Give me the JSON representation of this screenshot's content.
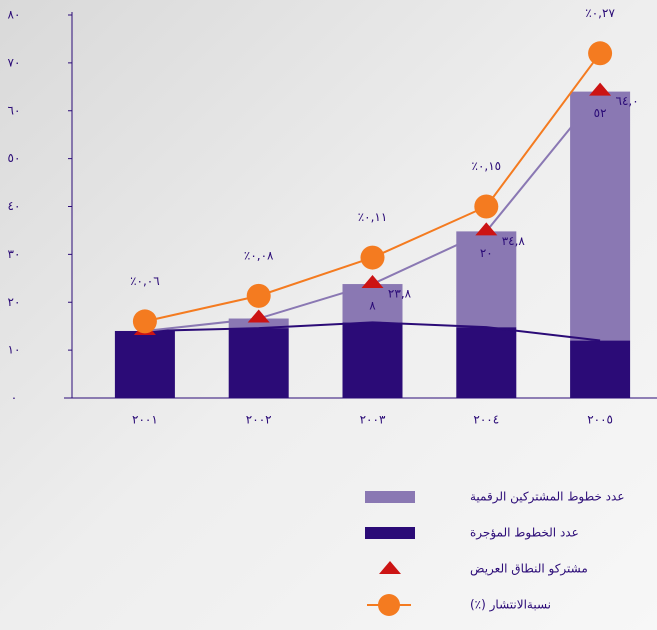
{
  "chart_data": {
    "type": "bar",
    "categories": [
      "٢٠٠١",
      "٢٠٠٢",
      "٢٠٠٣",
      "٢٠٠٤",
      "٢٠٠٥"
    ],
    "series": [
      {
        "name": "عدد الخطوط المؤجرة",
        "type": "bar",
        "color": "#2b0b77",
        "values": [
          14,
          14.6,
          15.8,
          14.8,
          12
        ]
      },
      {
        "name": "عدد خطوط المشتركين الرقمية",
        "type": "bar",
        "color": "#8a78b3",
        "values": [
          0,
          2,
          8,
          20,
          52
        ],
        "value_labels": [
          null,
          null,
          "٨",
          "٢٠",
          "٥٢"
        ]
      },
      {
        "name": "مشتركو النطاق العريض",
        "type": "marker",
        "color": "#cc1414",
        "values": [
          14,
          16.6,
          23.8,
          34.8,
          64
        ],
        "value_labels": [
          null,
          null,
          "٢٣,٨",
          "٣٤,٨",
          "٦٤,٠"
        ]
      },
      {
        "name": "نسبةالانتشار (٪)",
        "type": "line",
        "axis": "y2",
        "color": "#f47b20",
        "values": [
          0.06,
          0.08,
          0.11,
          0.15,
          0.27
        ],
        "value_labels": [
          "٪٠,٠٦",
          "٪٠,٠٨",
          "٪٠,١١",
          "٪٠,١٥",
          "٪٠,٢٧"
        ]
      }
    ],
    "ylim": [
      0,
      80
    ],
    "yticks": [
      {
        "value": 0,
        "label": "٠"
      },
      {
        "value": 10,
        "label": "١٠"
      },
      {
        "value": 20,
        "label": "٢٠"
      },
      {
        "value": 30,
        "label": "٣٠"
      },
      {
        "value": 40,
        "label": "٤٠"
      },
      {
        "value": 50,
        "label": "٥٠"
      },
      {
        "value": 60,
        "label": "٦٠"
      },
      {
        "value": 70,
        "label": "٧٠"
      },
      {
        "value": 80,
        "label": "٨٠"
      }
    ],
    "y2lim": [
      0,
      0.3
    ]
  }
}
